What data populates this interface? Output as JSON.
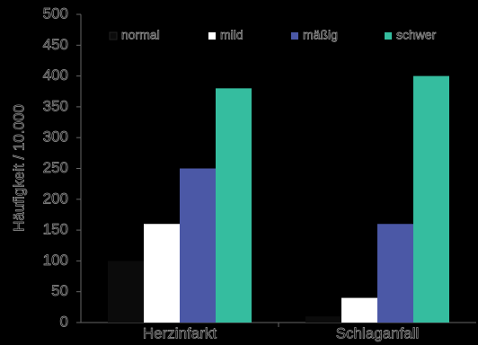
{
  "chart_data": {
    "type": "bar",
    "y_label": "Häufigkeit / 10.000",
    "categories": [
      "Herzinfarkt",
      "Schlaganfall"
    ],
    "series": [
      {
        "name": "normal",
        "color": "#0b0b0b",
        "values": [
          100,
          10
        ]
      },
      {
        "name": "mild",
        "color": "#ffffff",
        "values": [
          160,
          40
        ]
      },
      {
        "name": "mäßig",
        "color": "#4b58a6",
        "values": [
          250,
          160
        ]
      },
      {
        "name": "schwer",
        "color": "#35bd9f",
        "values": [
          380,
          400
        ]
      }
    ],
    "ylim": [
      0,
      500
    ],
    "yticks": [
      0,
      50,
      100,
      150,
      200,
      250,
      300,
      350,
      400,
      450,
      500
    ],
    "grid": false,
    "legend": "top"
  }
}
